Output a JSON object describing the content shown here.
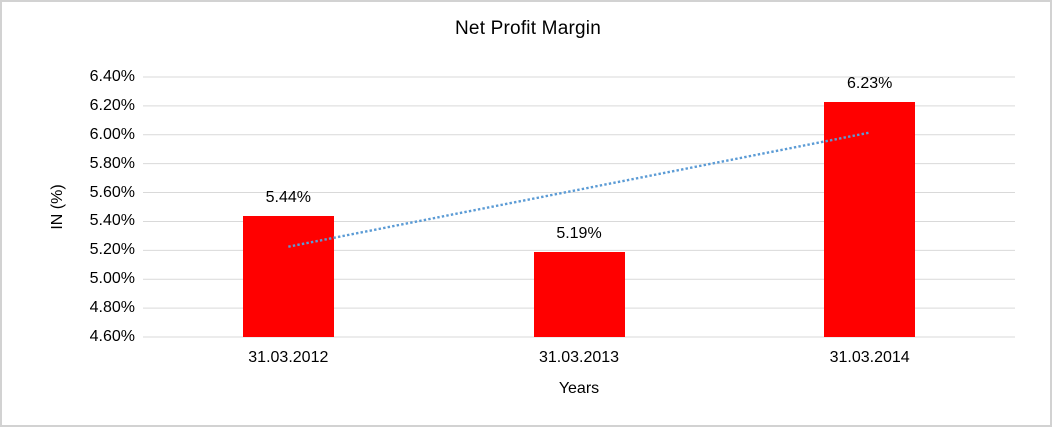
{
  "chart_data": {
    "type": "bar",
    "title": "Net Profit Margin",
    "xlabel": "Years",
    "ylabel": "IN (%)",
    "categories": [
      "31.03.2012",
      "31.03.2013",
      "31.03.2014"
    ],
    "values": [
      5.44,
      5.19,
      6.23
    ],
    "value_labels": [
      "5.44%",
      "5.19%",
      "6.23%"
    ],
    "ylim": [
      4.6,
      6.4
    ],
    "y_tick_step": 0.2,
    "y_tick_labels": [
      "4.60%",
      "4.80%",
      "5.00%",
      "5.20%",
      "5.40%",
      "5.60%",
      "5.80%",
      "6.00%",
      "6.20%",
      "6.40%"
    ],
    "grid": true,
    "legend": "none",
    "bar_color": "#ff0000",
    "gridline_color": "#d9d9d9",
    "trendline": {
      "type": "linear",
      "style": "dotted",
      "color": "#5b9bd5",
      "start_value": 5.225,
      "end_value": 6.015
    }
  }
}
